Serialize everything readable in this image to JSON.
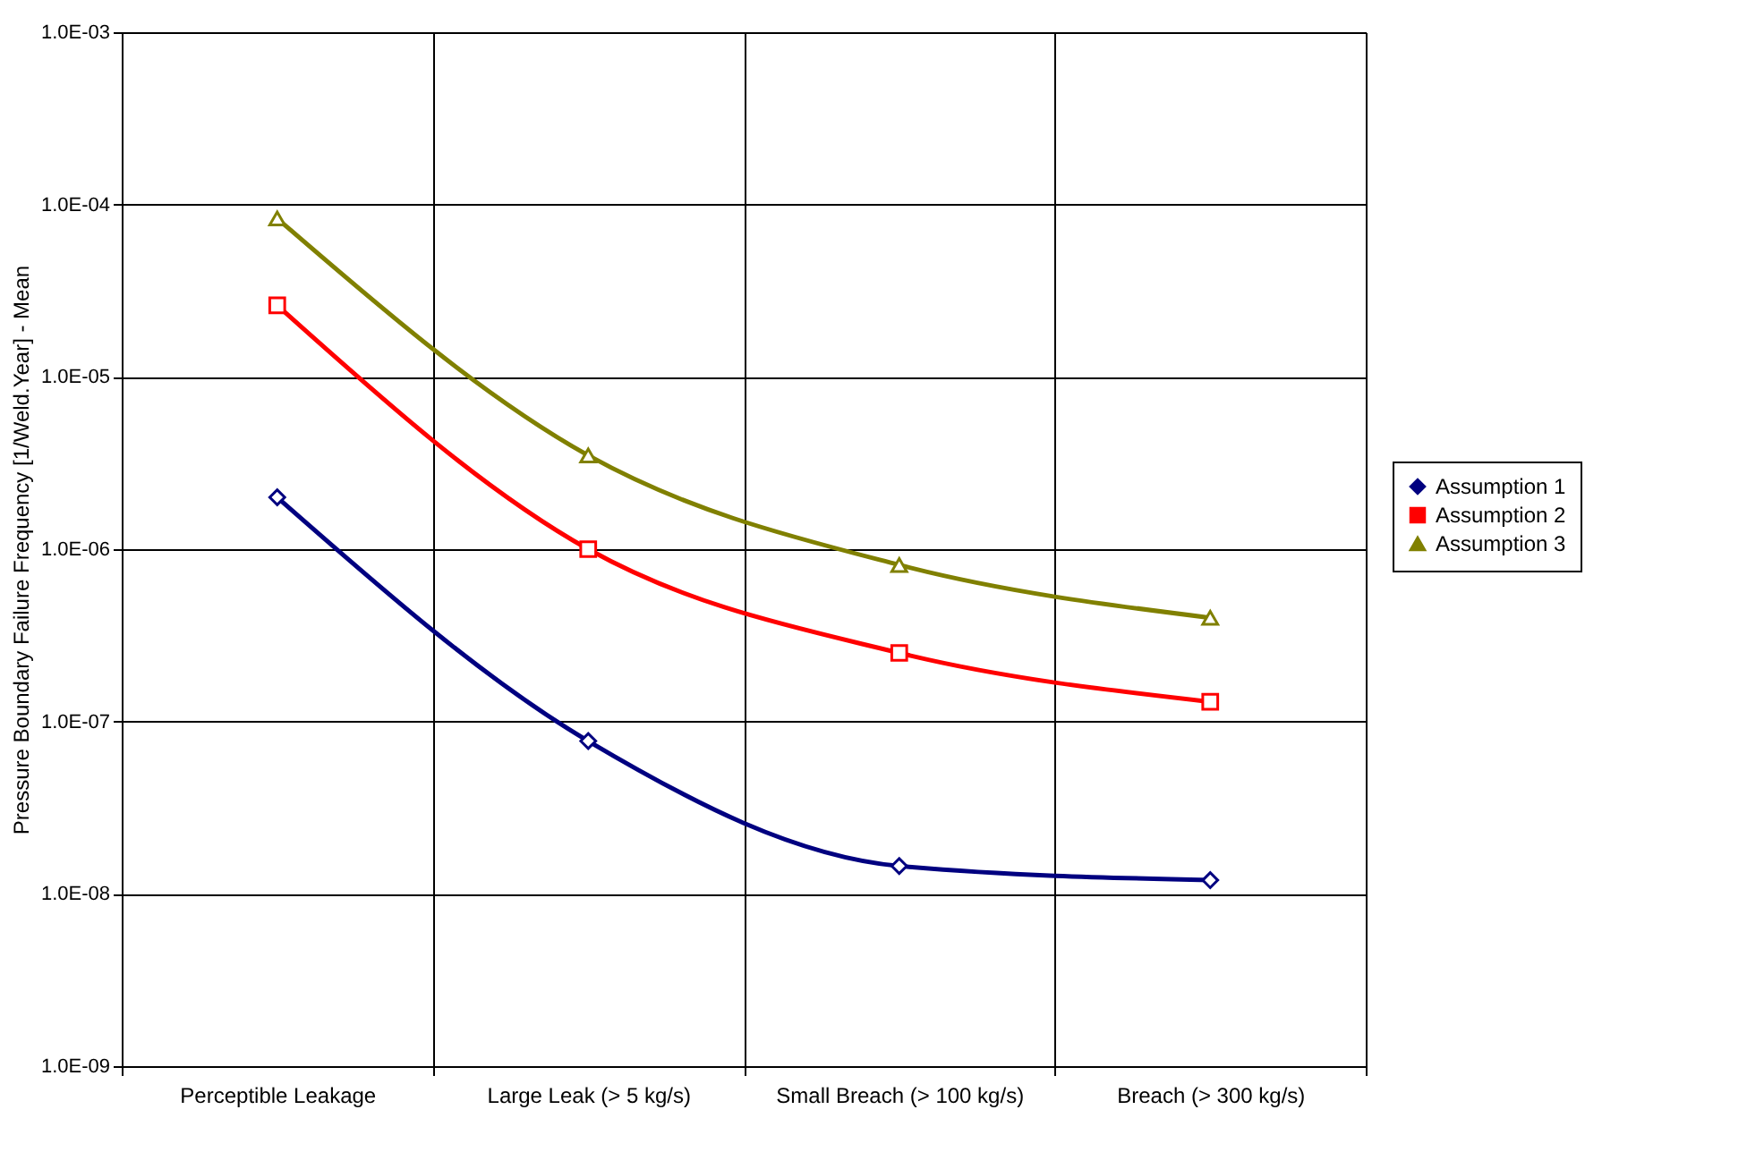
{
  "chart_data": {
    "type": "line",
    "ylabel": "Pressure Boundary Failure Frequency [1/Weld.Year] - Mean",
    "categories": [
      "Perceptible Leakage",
      "Large Leak (> 5 kg/s)",
      "Small Breach (> 100 kg/s)",
      "Breach (> 300 kg/s)"
    ],
    "series": [
      {
        "name": "Assumption 1",
        "color": "#000080",
        "marker": "diamond",
        "values": [
          2e-06,
          7.7e-08,
          1.45e-08,
          1.2e-08
        ]
      },
      {
        "name": "Assumption 2",
        "color": "#ff0000",
        "marker": "square",
        "values": [
          2.6e-05,
          1e-06,
          2.5e-07,
          1.3e-07
        ]
      },
      {
        "name": "Assumption 3",
        "color": "#808000",
        "marker": "triangle",
        "values": [
          8.3e-05,
          3.5e-06,
          8.1e-07,
          4e-07
        ]
      }
    ],
    "log": true,
    "ylim": [
      1e-09,
      0.001
    ],
    "yticks": [
      {
        "value": 1e-09,
        "label": "1.0E-09"
      },
      {
        "value": 1e-08,
        "label": "1.0E-08"
      },
      {
        "value": 1e-07,
        "label": "1.0E-07"
      },
      {
        "value": 1e-06,
        "label": "1.0E-06"
      },
      {
        "value": 1e-05,
        "label": "1.0E-05"
      },
      {
        "value": 0.0001,
        "label": "1.0E-04"
      },
      {
        "value": 0.001,
        "label": "1.0E-03"
      }
    ],
    "grid": true,
    "legend": "right",
    "line_style": "solid"
  }
}
